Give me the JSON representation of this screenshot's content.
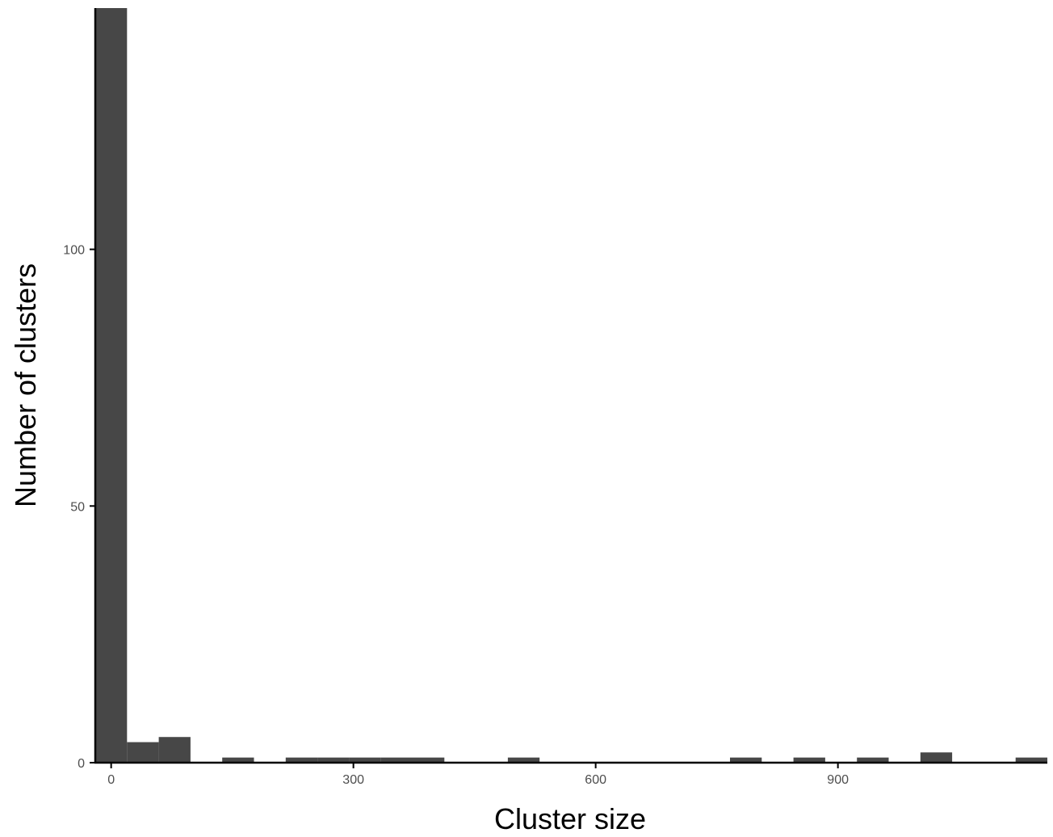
{
  "chart_data": {
    "type": "bar",
    "subtype": "histogram",
    "title": "",
    "xlabel": "Cluster size",
    "ylabel": "Number of clusters",
    "bin_width": 39.3,
    "bins": [
      {
        "x_start": -19.65,
        "x_end": 19.65,
        "count": 147
      },
      {
        "x_start": 19.65,
        "x_end": 58.95,
        "count": 4
      },
      {
        "x_start": 58.95,
        "x_end": 98.25,
        "count": 5
      },
      {
        "x_start": 98.25,
        "x_end": 137.55,
        "count": 0
      },
      {
        "x_start": 137.55,
        "x_end": 176.85,
        "count": 1
      },
      {
        "x_start": 176.85,
        "x_end": 216.15,
        "count": 0
      },
      {
        "x_start": 216.15,
        "x_end": 255.45,
        "count": 1
      },
      {
        "x_start": 255.45,
        "x_end": 294.75,
        "count": 1
      },
      {
        "x_start": 294.75,
        "x_end": 334.05,
        "count": 1
      },
      {
        "x_start": 334.05,
        "x_end": 373.35,
        "count": 1
      },
      {
        "x_start": 373.35,
        "x_end": 412.65,
        "count": 1
      },
      {
        "x_start": 412.65,
        "x_end": 451.95,
        "count": 0
      },
      {
        "x_start": 451.95,
        "x_end": 491.25,
        "count": 0
      },
      {
        "x_start": 491.25,
        "x_end": 530.55,
        "count": 1
      },
      {
        "x_start": 530.55,
        "x_end": 569.85,
        "count": 0
      },
      {
        "x_start": 569.85,
        "x_end": 609.15,
        "count": 0
      },
      {
        "x_start": 609.15,
        "x_end": 648.45,
        "count": 0
      },
      {
        "x_start": 648.45,
        "x_end": 687.75,
        "count": 0
      },
      {
        "x_start": 687.75,
        "x_end": 727.05,
        "count": 0
      },
      {
        "x_start": 727.05,
        "x_end": 766.35,
        "count": 0
      },
      {
        "x_start": 766.35,
        "x_end": 805.65,
        "count": 1
      },
      {
        "x_start": 805.65,
        "x_end": 844.95,
        "count": 0
      },
      {
        "x_start": 844.95,
        "x_end": 884.25,
        "count": 1
      },
      {
        "x_start": 884.25,
        "x_end": 923.55,
        "count": 0
      },
      {
        "x_start": 923.55,
        "x_end": 962.85,
        "count": 1
      },
      {
        "x_start": 962.85,
        "x_end": 1002.15,
        "count": 0
      },
      {
        "x_start": 1002.15,
        "x_end": 1041.45,
        "count": 2
      },
      {
        "x_start": 1041.45,
        "x_end": 1080.75,
        "count": 0
      },
      {
        "x_start": 1080.75,
        "x_end": 1120.05,
        "count": 0
      },
      {
        "x_start": 1120.05,
        "x_end": 1159.35,
        "count": 1
      }
    ],
    "xlim": [
      -19.65,
      1159.35
    ],
    "ylim": [
      0,
      147
    ],
    "x_ticks": [
      0,
      300,
      600,
      900
    ],
    "x_tick_labels": [
      "0",
      "300",
      "600",
      "900"
    ],
    "y_ticks": [
      0,
      50,
      100
    ],
    "y_tick_labels": [
      "0",
      "50",
      "100"
    ],
    "grid": false,
    "legend": "none",
    "colors": {
      "bar": "#474747",
      "axis": "#000000",
      "tick_label": "#4d4d4d"
    }
  }
}
